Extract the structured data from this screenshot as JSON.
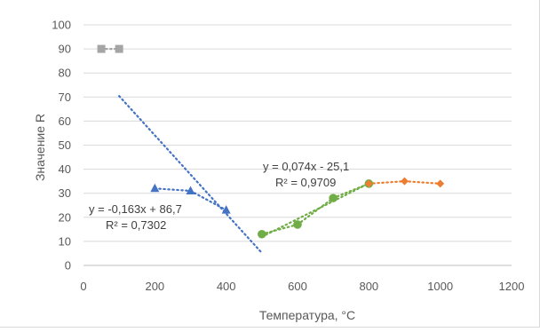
{
  "chart_data": {
    "type": "scatter",
    "title": "",
    "xlabel": "Температура, °C",
    "ylabel": "Значение R",
    "xlim": [
      0,
      1200
    ],
    "ylim": [
      0,
      100
    ],
    "x_ticks": [
      0,
      200,
      400,
      600,
      800,
      1000,
      1200
    ],
    "y_ticks": [
      0,
      10,
      20,
      30,
      40,
      50,
      60,
      70,
      80,
      90,
      100
    ],
    "grid": "horizontal",
    "legend": "none",
    "series": [
      {
        "color": "#a5a5a5",
        "marker": "square",
        "points": [
          [
            50,
            90
          ],
          [
            100,
            90
          ]
        ]
      },
      {
        "color": "#4472c4",
        "marker": "triangle",
        "points": [
          [
            200,
            32
          ],
          [
            300,
            31
          ],
          [
            400,
            23
          ]
        ]
      },
      {
        "color": "#70ad47",
        "marker": "circle",
        "points": [
          [
            500,
            13
          ],
          [
            600,
            17
          ],
          [
            700,
            28
          ],
          [
            800,
            34
          ]
        ]
      },
      {
        "color": "#ed7d31",
        "marker": "diamond",
        "points": [
          [
            800,
            34
          ],
          [
            900,
            35
          ],
          [
            1000,
            34
          ]
        ]
      }
    ],
    "trendlines": [
      {
        "color": "#4472c4",
        "slope": -0.163,
        "intercept": 86.7,
        "x_range": [
          100,
          500
        ]
      },
      {
        "color": "#70ad47",
        "slope": 0.074,
        "intercept": -25.1,
        "x_range": [
          500,
          800
        ]
      }
    ],
    "annotations": {
      "blue_equation": "y = -0,163x + 86,7",
      "blue_r2": "R² = 0,7302",
      "green_equation": "y = 0,074x - 25,1",
      "green_r2": "R² = 0,9709"
    }
  }
}
